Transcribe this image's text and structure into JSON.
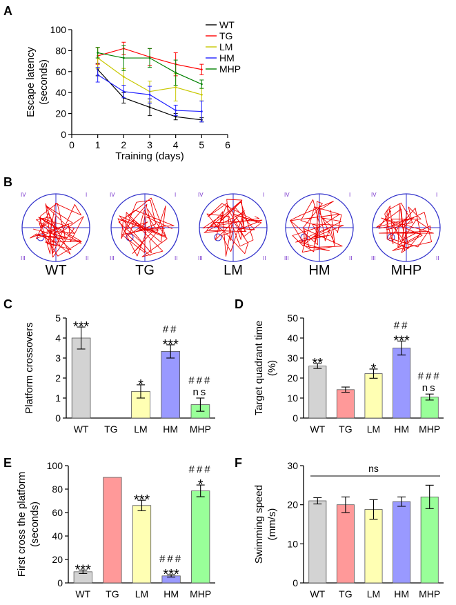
{
  "panel_labels": [
    "A",
    "B",
    "C",
    "D",
    "E",
    "F"
  ],
  "chart_data": [
    {
      "id": "A",
      "type": "line",
      "xlabel": "Training (days)",
      "ylabel": [
        "Escape latency",
        "(seconds)"
      ],
      "xlim": [
        0,
        6
      ],
      "ylim": [
        0,
        100
      ],
      "xticks": [
        "0",
        "1",
        "2",
        "3",
        "4",
        "5",
        "6"
      ],
      "yticks": [
        "0",
        "20",
        "40",
        "60",
        "80",
        "100"
      ],
      "x": [
        1,
        2,
        3,
        4,
        5
      ],
      "legend_position": "top-right",
      "series": [
        {
          "name": "WT",
          "color": "#000000",
          "values": [
            62,
            35,
            26,
            17,
            14
          ],
          "errors": [
            6,
            5,
            8,
            3,
            2
          ]
        },
        {
          "name": "TG",
          "color": "#ff0000",
          "values": [
            75,
            82,
            74,
            67,
            62
          ],
          "errors": [
            8,
            6,
            8,
            11,
            5
          ]
        },
        {
          "name": "LM",
          "color": "#c8c800",
          "values": [
            73,
            55,
            41,
            45,
            38
          ],
          "errors": [
            10,
            8,
            10,
            13,
            6
          ]
        },
        {
          "name": "HM",
          "color": "#2020ff",
          "values": [
            57,
            41,
            38,
            23,
            22
          ],
          "errors": [
            7,
            6,
            8,
            5,
            10
          ]
        },
        {
          "name": "MHP",
          "color": "#008000",
          "values": [
            78,
            73,
            73,
            59,
            48
          ],
          "errors": [
            5,
            12,
            9,
            12,
            4
          ]
        }
      ]
    },
    {
      "id": "C",
      "type": "bar",
      "ylabel": [
        "Platform crossovers"
      ],
      "ylim": [
        0,
        5
      ],
      "yticks": [
        "0",
        "1",
        "2",
        "3",
        "4",
        "5"
      ],
      "categories": [
        "WT",
        "TG",
        "LM",
        "HM",
        "MHP"
      ],
      "colors": [
        "#d3d3d3",
        "#ff9999",
        "#ffffb3",
        "#9999ff",
        "#99ff99"
      ],
      "values": [
        4.0,
        0,
        1.33,
        3.33,
        0.67
      ],
      "errors": [
        0.55,
        0,
        0.33,
        0.33,
        0.33
      ],
      "annotations": [
        [
          "***"
        ],
        [],
        [
          "*"
        ],
        [
          "##",
          "***"
        ],
        [
          "###",
          "ns"
        ]
      ]
    },
    {
      "id": "D",
      "type": "bar",
      "ylabel": [
        "Target quadrant time",
        "(%)"
      ],
      "ylim": [
        0,
        50
      ],
      "yticks": [
        "0",
        "10",
        "20",
        "30",
        "40",
        "50"
      ],
      "categories": [
        "WT",
        "TG",
        "LM",
        "HM",
        "MHP"
      ],
      "colors": [
        "#d3d3d3",
        "#ff9999",
        "#ffffb3",
        "#9999ff",
        "#99ff99"
      ],
      "values": [
        26,
        14.2,
        22.2,
        35,
        10.5
      ],
      "errors": [
        1.2,
        1.3,
        2.3,
        3.5,
        1.5
      ],
      "annotations": [
        [
          "**"
        ],
        [],
        [
          "*"
        ],
        [
          "##",
          "***"
        ],
        [
          "###",
          "ns"
        ]
      ]
    },
    {
      "id": "E",
      "type": "bar",
      "ylabel": [
        "First cross the platform",
        "(seconds)"
      ],
      "ylim": [
        0,
        100
      ],
      "yticks": [
        "0",
        "20",
        "40",
        "60",
        "80",
        "100"
      ],
      "categories": [
        "WT",
        "TG",
        "LM",
        "HM",
        "MHP"
      ],
      "colors": [
        "#d3d3d3",
        "#ff9999",
        "#ffffb3",
        "#9999ff",
        "#99ff99"
      ],
      "values": [
        9.5,
        90,
        66,
        6,
        78.5
      ],
      "errors": [
        1.5,
        0,
        4.5,
        1,
        5
      ],
      "annotations": [
        [
          "***"
        ],
        [],
        [
          "***"
        ],
        [
          "###",
          "***"
        ],
        [
          "###",
          "*"
        ]
      ]
    },
    {
      "id": "F",
      "type": "bar",
      "ylabel": [
        "Swimming speed",
        "(mm/s)"
      ],
      "ylim": [
        0,
        30
      ],
      "yticks": [
        "0",
        "10",
        "20",
        "30"
      ],
      "categories": [
        "WT",
        "TG",
        "LM",
        "HM",
        "MHP"
      ],
      "colors": [
        "#d3d3d3",
        "#ff9999",
        "#ffffb3",
        "#9999ff",
        "#99ff99"
      ],
      "values": [
        21,
        20,
        18.8,
        20.8,
        22
      ],
      "errors": [
        0.8,
        2,
        2.5,
        1.2,
        3
      ],
      "annotations": [
        [],
        [],
        [],
        [],
        []
      ],
      "overall_annotation": "ns"
    }
  ],
  "swim_paths": {
    "groups": [
      "WT",
      "TG",
      "LM",
      "HM",
      "MHP"
    ],
    "quadrant_labels": [
      "IV",
      "I",
      "III",
      "II"
    ],
    "path_color": "#ee0000",
    "pool_color": "#3333cc",
    "quadrant_label_color": "#7733cc"
  }
}
